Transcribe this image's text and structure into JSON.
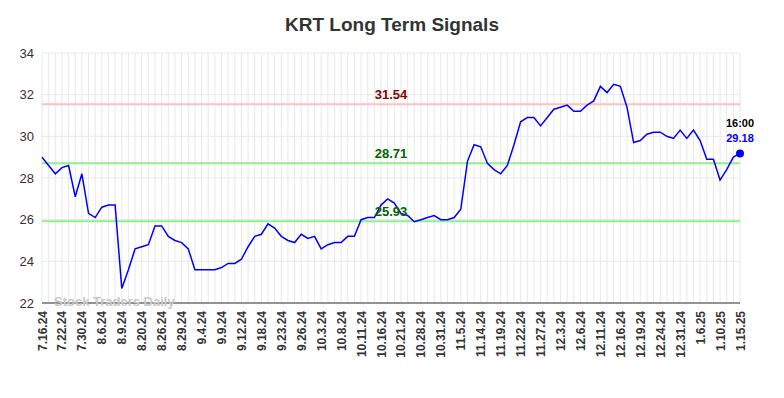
{
  "chart_data": {
    "type": "line",
    "title": "KRT Long Term Signals",
    "watermark": "Stock Traders Daily",
    "annotations": [
      "16:00",
      "29.18"
    ],
    "categories": [
      "7.16.24",
      null,
      null,
      "7.22.24",
      null,
      null,
      "7.30.24",
      null,
      null,
      "8.6.24",
      null,
      null,
      "8.9.24",
      null,
      null,
      "8.20.24",
      null,
      null,
      "8.26.24",
      null,
      null,
      "8.29.24",
      null,
      null,
      "9.4.24",
      null,
      null,
      "9.9.24",
      null,
      null,
      "9.12.24",
      null,
      null,
      "9.18.24",
      null,
      null,
      "9.23.24",
      null,
      null,
      "9.26.24",
      null,
      null,
      "10.3.24",
      null,
      null,
      "10.8.24",
      null,
      null,
      "10.11.24",
      null,
      null,
      "10.16.24",
      null,
      null,
      "10.21.24",
      null,
      null,
      "10.28.24",
      null,
      null,
      "10.31.24",
      null,
      null,
      "11.5.24",
      null,
      null,
      "11.14.24",
      null,
      null,
      "11.19.24",
      null,
      null,
      "11.22.24",
      null,
      null,
      "11.27.24",
      null,
      null,
      "12.3.24",
      null,
      null,
      "12.6.24",
      null,
      null,
      "12.11.24",
      null,
      null,
      "12.16.24",
      null,
      null,
      "12.19.24",
      null,
      null,
      "12.24.24",
      null,
      null,
      "12.31.24",
      null,
      null,
      "1.6.25",
      null,
      null,
      "1.10.25",
      null,
      null,
      "1.15.25"
    ],
    "values": [
      29.0,
      28.6,
      28.2,
      28.5,
      28.6,
      27.1,
      28.2,
      26.3,
      26.1,
      26.6,
      26.7,
      26.7,
      22.7,
      23.6,
      24.6,
      24.7,
      24.8,
      25.7,
      25.7,
      25.2,
      25.0,
      24.9,
      24.6,
      23.6,
      23.6,
      23.6,
      23.6,
      23.7,
      23.9,
      23.9,
      24.1,
      24.7,
      25.2,
      25.3,
      25.8,
      25.6,
      25.2,
      25.0,
      24.9,
      25.3,
      25.1,
      25.2,
      24.6,
      24.8,
      24.9,
      24.9,
      25.2,
      25.2,
      26.0,
      26.1,
      26.1,
      26.7,
      27.0,
      26.8,
      26.3,
      26.2,
      25.9,
      26.0,
      26.1,
      26.2,
      26.0,
      26.0,
      26.1,
      26.5,
      28.8,
      29.6,
      29.5,
      28.7,
      28.4,
      28.2,
      28.6,
      29.6,
      30.7,
      30.9,
      30.9,
      30.5,
      30.9,
      31.3,
      31.4,
      31.5,
      31.2,
      31.2,
      31.5,
      31.7,
      32.4,
      32.1,
      32.5,
      32.4,
      31.4,
      29.7,
      29.8,
      30.1,
      30.2,
      30.2,
      30.0,
      29.9,
      30.3,
      29.9,
      30.3,
      29.8,
      28.9,
      28.9,
      27.9,
      28.4,
      29.0,
      29.18
    ],
    "color": "#0000ff",
    "ylim": [
      22,
      34
    ],
    "yticks": [
      22,
      24,
      26,
      28,
      30,
      32,
      34
    ],
    "grid": true,
    "reference_lines": [
      {
        "value": 31.54,
        "color": "#ffc0c0",
        "label_color": "#8b0000"
      },
      {
        "value": 28.71,
        "color": "#90ee90",
        "label_color": "#006400"
      },
      {
        "value": 25.93,
        "color": "#90ee90",
        "label_color": "#006400"
      }
    ]
  }
}
